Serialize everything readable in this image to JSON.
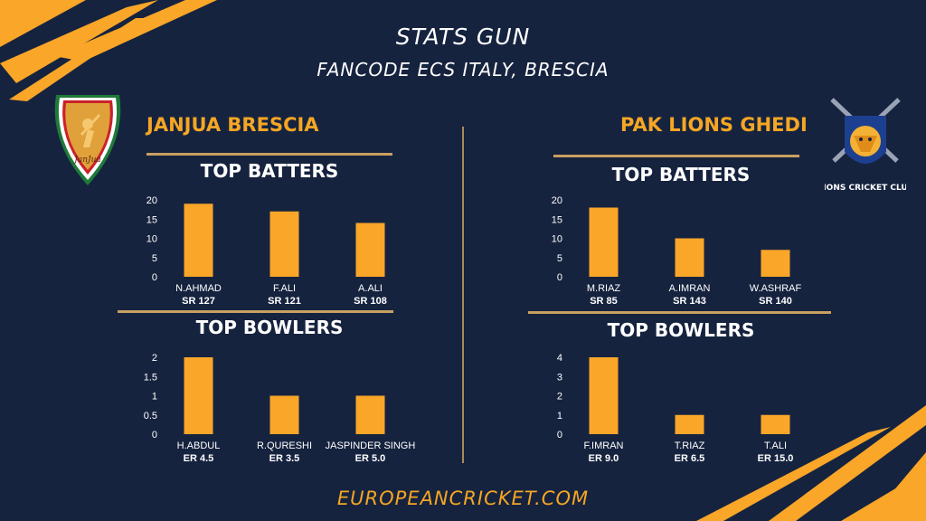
{
  "header": {
    "title": "STATS GUN",
    "subtitle": "FANCODE ECS ITALY, BRESCIA"
  },
  "teams": [
    {
      "name": "JANJUA BRESCIA",
      "logo_text": "JanJua"
    },
    {
      "name": "PAK LIONS GHEDI",
      "logo_text": "IONS CRICKET CLU"
    }
  ],
  "footer": {
    "text": "EUROPEANCRICKET.COM"
  },
  "colors": {
    "background": "#16233f",
    "bar": "#f9a629",
    "accent": "#f5a623",
    "text": "#ffffff"
  },
  "chart_data": [
    {
      "type": "bar",
      "team": "JANJUA BRESCIA",
      "title": "TOP BATTERS",
      "categories": [
        "N.AHMAD",
        "F.ALI",
        "A.ALI"
      ],
      "values": [
        19,
        17,
        14
      ],
      "sublabels": [
        "SR 127",
        "SR 121",
        "SR 108"
      ],
      "ylim": [
        0,
        20
      ],
      "yticks": [
        "0",
        "5",
        "10",
        "15",
        "20"
      ],
      "grid": false
    },
    {
      "type": "bar",
      "team": "JANJUA BRESCIA",
      "title": "TOP BOWLERS",
      "categories": [
        "H.ABDUL",
        "R.QURESHI",
        "JASPINDER SINGH"
      ],
      "values": [
        2,
        1,
        1
      ],
      "sublabels": [
        "ER 4.5",
        "ER 3.5",
        "ER 5.0"
      ],
      "ylim": [
        0,
        2
      ],
      "yticks": [
        "0",
        "0.5",
        "1",
        "1.5",
        "2"
      ],
      "grid": false
    },
    {
      "type": "bar",
      "team": "PAK LIONS GHEDI",
      "title": "TOP BATTERS",
      "categories": [
        "M.RIAZ",
        "A.IMRAN",
        "W.ASHRAF"
      ],
      "values": [
        18,
        10,
        7
      ],
      "sublabels": [
        "SR 85",
        "SR 143",
        "SR 140"
      ],
      "ylim": [
        0,
        20
      ],
      "yticks": [
        "0",
        "5",
        "10",
        "15",
        "20"
      ],
      "grid": false
    },
    {
      "type": "bar",
      "team": "PAK LIONS GHEDI",
      "title": "TOP BOWLERS",
      "categories": [
        "F.IMRAN",
        "T.RIAZ",
        "T.ALI"
      ],
      "values": [
        4,
        1,
        1
      ],
      "sublabels": [
        "ER 9.0",
        "ER 6.5",
        "ER 15.0"
      ],
      "ylim": [
        0,
        4
      ],
      "yticks": [
        "0",
        "1",
        "2",
        "3",
        "4"
      ],
      "grid": false
    }
  ]
}
